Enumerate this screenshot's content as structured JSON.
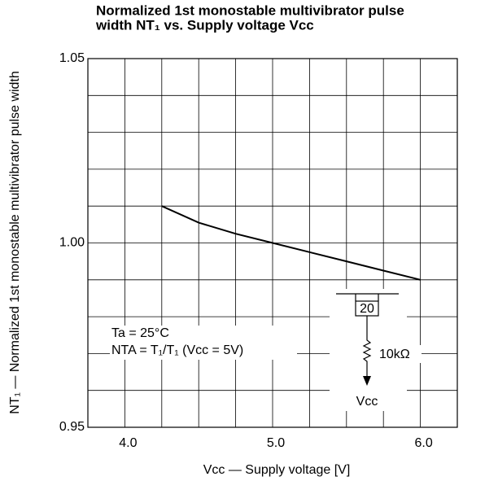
{
  "chart_data": {
    "type": "line",
    "title": [
      "Normalized 1st monostable multivibrator pulse",
      "width NT₁ vs. Supply voltage Vcc"
    ],
    "x_label": "Vcc — Supply voltage [V]",
    "y_label": "NT₁ — Normalized 1st monostable multivibrator pulse width",
    "annotations": [
      "Ta = 25°C",
      "NTA = T₁/T₁ (Vcc = 5V)"
    ],
    "circuit_labels": [
      "20",
      "10kΩ",
      "Vcc"
    ],
    "x": [
      4.25,
      4.5,
      4.75,
      5.0,
      5.25,
      5.5,
      5.75,
      6.0
    ],
    "series": [
      {
        "color": "#000000",
        "values": [
          1.01,
          1.0055,
          1.0025,
          1.0,
          0.9975,
          0.995,
          0.9925,
          0.99
        ]
      }
    ],
    "xlim": [
      3.75,
      6.25
    ],
    "xticks": [
      {
        "value": 4,
        "label": "4.0"
      },
      {
        "value": 5,
        "label": "5.0"
      },
      {
        "value": 6,
        "label": "6.0"
      }
    ],
    "ylim": [
      0.95,
      1.05
    ],
    "yticks": [
      {
        "value": 0.95,
        "label": "0.95"
      },
      {
        "value": 1,
        "label": "1.00"
      },
      {
        "value": 1.05,
        "label": "1.05"
      }
    ],
    "xgrid": [
      4,
      4.25,
      4.5,
      4.75,
      5,
      5.25,
      5.5,
      5.75,
      6
    ],
    "ygrid": [
      0.96,
      0.97,
      0.98,
      0.99,
      1,
      1.01,
      1.02,
      1.03,
      1.04
    ],
    "grid": true
  }
}
